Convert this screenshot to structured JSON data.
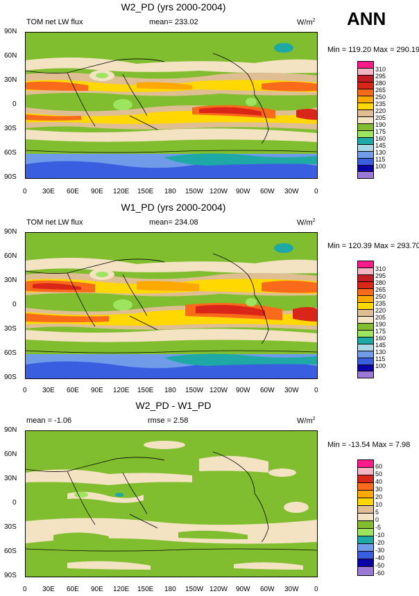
{
  "season": "ANN",
  "palette_main": [
    "#9a79d6",
    "#0a00a8",
    "#3a5ee0",
    "#6f9be8",
    "#a9d7e6",
    "#1fa9a6",
    "#9de55e",
    "#80bd2f",
    "#f4e3c2",
    "#e0be93",
    "#ffd800",
    "#ffa800",
    "#fa6a1b",
    "#da2618",
    "#c51b22",
    "#f5b4c2",
    "#ff1a8c"
  ],
  "palette_diff": [
    "#9a79d6",
    "#0a00a8",
    "#3a5ee0",
    "#6f9be8",
    "#1fa9a6",
    "#9de55e",
    "#80bd2f",
    "#f4e3c2",
    "#e0be93",
    "#ffd800",
    "#ffa800",
    "#fa6a1b",
    "#da2618",
    "#f5b4c2",
    "#ff1a8c"
  ],
  "lat_labels": [
    "90N",
    "60N",
    "30N",
    "0",
    "30S",
    "60S",
    "90S"
  ],
  "lon_labels": [
    "0",
    "30E",
    "60E",
    "90E",
    "120E",
    "150E",
    "180",
    "150W",
    "120W",
    "90W",
    "60W",
    "30W",
    "0"
  ],
  "panels": [
    {
      "title": "W2_PD (yrs 2000-2004)",
      "left_label": "TOM net LW flux",
      "center_label": "mean= 233.02",
      "units": "W/m",
      "units_sup": "2",
      "minmax": "Min = 119.20 Max = 290.19",
      "levels": [
        "310",
        "295",
        "280",
        "265",
        "250",
        "235",
        "220",
        "205",
        "190",
        "175",
        "160",
        "145",
        "130",
        "115",
        "100"
      ]
    },
    {
      "title": "W1_PD (yrs 2000-2004)",
      "left_label": "TOM net LW flux",
      "center_label": "mean= 234.08",
      "units": "W/m",
      "units_sup": "2",
      "minmax": "Min = 120.39 Max = 293.70",
      "levels": [
        "310",
        "295",
        "280",
        "265",
        "250",
        "235",
        "220",
        "205",
        "190",
        "175",
        "160",
        "145",
        "130",
        "115",
        "100"
      ]
    },
    {
      "title": "W2_PD - W1_PD",
      "left_label": "mean =  -1.06",
      "center_label": "rmse =   2.58",
      "units": "W/m",
      "units_sup": "2",
      "minmax": "Min = -13.54 Max =   7.98",
      "levels": [
        "60",
        "50",
        "40",
        "30",
        "20",
        "10",
        "5",
        "0",
        "-5",
        "-10",
        "-20",
        "-30",
        "-40",
        "-50",
        "-60"
      ]
    }
  ]
}
